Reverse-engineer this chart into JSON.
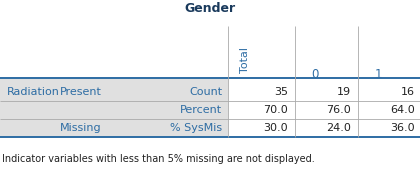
{
  "title": "Gender",
  "header_cols": [
    "Total",
    "0",
    "1"
  ],
  "row_labels": [
    [
      "Radiation",
      "Present",
      "Count"
    ],
    [
      "",
      "",
      "Percent"
    ],
    [
      "",
      "Missing",
      "% SysMis"
    ]
  ],
  "values": [
    [
      "35",
      "19",
      "16"
    ],
    [
      "70.0",
      "76.0",
      "64.0"
    ],
    [
      "30.0",
      "24.0",
      "36.0"
    ]
  ],
  "footnote": "Indicator variables with less than 5% missing are not displayed.",
  "title_color": "#1a3a5c",
  "header_color": "#2e6da4",
  "label_color": "#2e6da4",
  "data_color": "#222222",
  "bg_color_left": "#e0e0e0",
  "title_fontsize": 9,
  "header_fontsize": 8,
  "label_fontsize": 8,
  "data_fontsize": 8,
  "footnote_fontsize": 7
}
